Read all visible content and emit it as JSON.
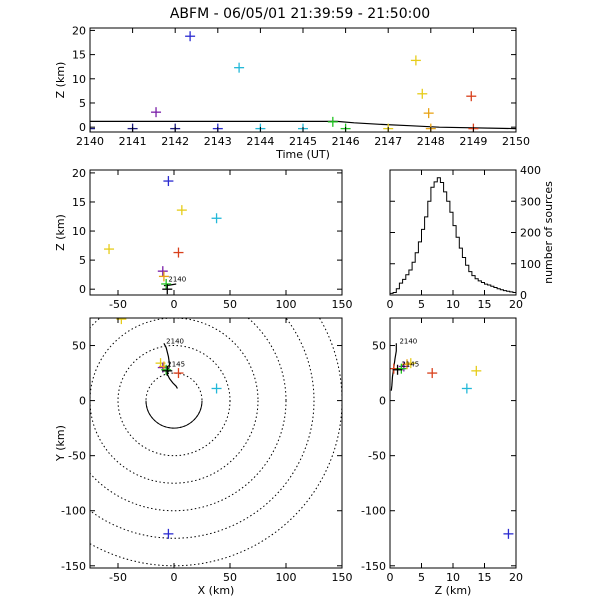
{
  "title": "ABFM - 06/05/01 21:39:59 - 21:50:00",
  "colors": {
    "blue": "#2b2bd0",
    "cyan": "#22b8d8",
    "green": "#22c422",
    "yellow": "#e6cc1a",
    "orange": "#e8a316",
    "red": "#d8401c",
    "purple": "#7a1ea8",
    "navy": "#1a1a80",
    "black": "#000000"
  },
  "chart_data": [
    {
      "id": "time_height",
      "type": "scatter",
      "xlabel": "Time (UT)",
      "ylabel": "Z (km)",
      "xlim": [
        2140,
        2150
      ],
      "ylim": [
        -1,
        20.5
      ],
      "x_ticks": [
        "2140",
        "2141",
        "2142",
        "2143",
        "2144",
        "2145",
        "2146",
        "2147",
        "2148",
        "2149",
        "2150"
      ],
      "y_ticks": [
        "0",
        "5",
        "10",
        "15",
        "20"
      ],
      "points": [
        {
          "x": 2140.0,
          "y": -0.3,
          "c": "navy"
        },
        {
          "x": 2141.0,
          "y": -0.3,
          "c": "navy"
        },
        {
          "x": 2141.55,
          "y": 3.1,
          "c": "purple"
        },
        {
          "x": 2142.0,
          "y": -0.3,
          "c": "navy"
        },
        {
          "x": 2142.35,
          "y": 18.8,
          "c": "blue"
        },
        {
          "x": 2143.0,
          "y": -0.3,
          "c": "blue"
        },
        {
          "x": 2143.5,
          "y": 12.3,
          "c": "cyan"
        },
        {
          "x": 2144.0,
          "y": -0.3,
          "c": "cyan"
        },
        {
          "x": 2145.0,
          "y": -0.3,
          "c": "cyan"
        },
        {
          "x": 2145.7,
          "y": 1.1,
          "c": "green"
        },
        {
          "x": 2146.0,
          "y": -0.3,
          "c": "green"
        },
        {
          "x": 2147.0,
          "y": -0.3,
          "c": "yellow"
        },
        {
          "x": 2147.65,
          "y": 13.8,
          "c": "yellow"
        },
        {
          "x": 2147.8,
          "y": 6.9,
          "c": "yellow"
        },
        {
          "x": 2147.95,
          "y": 2.9,
          "c": "orange"
        },
        {
          "x": 2148.0,
          "y": -0.3,
          "c": "orange"
        },
        {
          "x": 2148.95,
          "y": 6.4,
          "c": "red"
        },
        {
          "x": 2149.0,
          "y": -0.3,
          "c": "red"
        }
      ],
      "line": [
        [
          2140,
          1.2
        ],
        [
          2145.8,
          1.2
        ],
        [
          2146.2,
          0.9
        ],
        [
          2146.8,
          0.6
        ],
        [
          2147.5,
          0.3
        ],
        [
          2148.2,
          0.0
        ],
        [
          2150,
          -0.3
        ]
      ]
    },
    {
      "id": "x_z",
      "type": "scatter",
      "xlabel": "",
      "ylabel": "Z (km)",
      "xlim": [
        -75,
        150
      ],
      "ylim": [
        -1,
        20.5
      ],
      "x_ticks": [
        "-50",
        "0",
        "50",
        "100",
        "150"
      ],
      "y_ticks": [
        "0",
        "5",
        "10",
        "15",
        "20"
      ],
      "points": [
        {
          "x": -5,
          "y": 18.6,
          "c": "blue"
        },
        {
          "x": 38,
          "y": 12.2,
          "c": "cyan"
        },
        {
          "x": 7,
          "y": 13.6,
          "c": "yellow"
        },
        {
          "x": -58,
          "y": 6.9,
          "c": "yellow"
        },
        {
          "x": 4,
          "y": 6.3,
          "c": "red"
        },
        {
          "x": -10,
          "y": 3.1,
          "c": "purple"
        },
        {
          "x": -9,
          "y": 2.2,
          "c": "orange"
        },
        {
          "x": -7,
          "y": 0.9,
          "c": "green"
        },
        {
          "x": -6,
          "y": 0.0,
          "c": "black"
        }
      ],
      "labels": [
        {
          "text": "2140",
          "x": -5,
          "y": 1.3
        }
      ],
      "line": [
        [
          -9,
          0.6
        ],
        [
          -4,
          0.7
        ],
        [
          2,
          0.9
        ]
      ]
    },
    {
      "id": "histogram",
      "type": "bar",
      "xlabel": "",
      "ylabel": "number of sources",
      "xlim": [
        0,
        20
      ],
      "ylim": [
        0,
        400
      ],
      "x_ticks": [
        "0",
        "5",
        "10",
        "15",
        "20"
      ],
      "y_ticks": [
        "0",
        "100",
        "200",
        "300",
        "400"
      ],
      "bin_width": 0.5,
      "bins_start": 0,
      "values": [
        5,
        8,
        20,
        38,
        50,
        65,
        80,
        105,
        135,
        170,
        210,
        250,
        300,
        345,
        362,
        375,
        360,
        330,
        300,
        265,
        222,
        185,
        150,
        120,
        95,
        75,
        62,
        52,
        45,
        40,
        35,
        32,
        28,
        24,
        20,
        17,
        14,
        12,
        10,
        8
      ]
    },
    {
      "id": "x_y",
      "type": "scatter",
      "xlabel": "X (km)",
      "ylabel": "Y (km)",
      "xlim": [
        -75,
        150
      ],
      "ylim": [
        -152,
        75
      ],
      "x_ticks": [
        "-50",
        "0",
        "50",
        "100",
        "150"
      ],
      "y_ticks": [
        "-150",
        "-100",
        "-50",
        "0",
        "50"
      ],
      "ring_radii_km": [
        25,
        50,
        75,
        100,
        125,
        150
      ],
      "ring_center": [
        0,
        0
      ],
      "points": [
        {
          "x": -5,
          "y": -121,
          "c": "blue"
        },
        {
          "x": 38,
          "y": 11,
          "c": "cyan"
        },
        {
          "x": -12,
          "y": 34,
          "c": "yellow"
        },
        {
          "x": -47,
          "y": 74,
          "c": "yellow"
        },
        {
          "x": 4,
          "y": 25,
          "c": "red"
        },
        {
          "x": -10,
          "y": 30,
          "c": "purple"
        },
        {
          "x": -9,
          "y": 31,
          "c": "orange"
        },
        {
          "x": -7,
          "y": 28,
          "c": "green"
        },
        {
          "x": -6,
          "y": 27,
          "c": "black"
        }
      ],
      "labels": [
        {
          "text": "2140",
          "x": -7,
          "y": 52
        },
        {
          "text": "2145",
          "x": -6,
          "y": 31
        }
      ],
      "line": [
        [
          -9,
          52
        ],
        [
          -7,
          48
        ],
        [
          -5,
          40
        ],
        [
          -4,
          33
        ],
        [
          -5,
          27
        ],
        [
          -6,
          24
        ],
        [
          -4,
          20
        ],
        [
          -1,
          16
        ],
        [
          2,
          13
        ],
        [
          3,
          11
        ]
      ]
    },
    {
      "id": "z_y",
      "type": "scatter",
      "xlabel": "Z (km)",
      "ylabel": "",
      "xlim": [
        0,
        20
      ],
      "ylim": [
        -152,
        75
      ],
      "x_ticks": [
        "0",
        "5",
        "10",
        "15",
        "20"
      ],
      "y_ticks": [
        "-150",
        "-100",
        "-50",
        "0",
        "50"
      ],
      "points": [
        {
          "x": 18.8,
          "y": -121,
          "c": "blue"
        },
        {
          "x": 12.2,
          "y": 11,
          "c": "cyan"
        },
        {
          "x": 3.3,
          "y": 34,
          "c": "yellow"
        },
        {
          "x": 13.7,
          "y": 27,
          "c": "yellow"
        },
        {
          "x": 6.7,
          "y": 25,
          "c": "red"
        },
        {
          "x": 0.6,
          "y": 29,
          "c": "red"
        },
        {
          "x": 2.2,
          "y": 31,
          "c": "purple"
        },
        {
          "x": 2.7,
          "y": 33,
          "c": "orange"
        },
        {
          "x": 1.8,
          "y": 29,
          "c": "green"
        },
        {
          "x": 1.2,
          "y": 28,
          "c": "black"
        }
      ],
      "labels": [
        {
          "text": "2140",
          "x": 1.5,
          "y": 52
        },
        {
          "text": "2145",
          "x": 1.8,
          "y": 31
        }
      ],
      "line": [
        [
          1.0,
          52
        ],
        [
          1.0,
          45
        ],
        [
          0.8,
          38
        ],
        [
          0.6,
          30
        ],
        [
          0.4,
          22
        ],
        [
          0.3,
          14
        ],
        [
          0.2,
          9
        ]
      ]
    }
  ]
}
